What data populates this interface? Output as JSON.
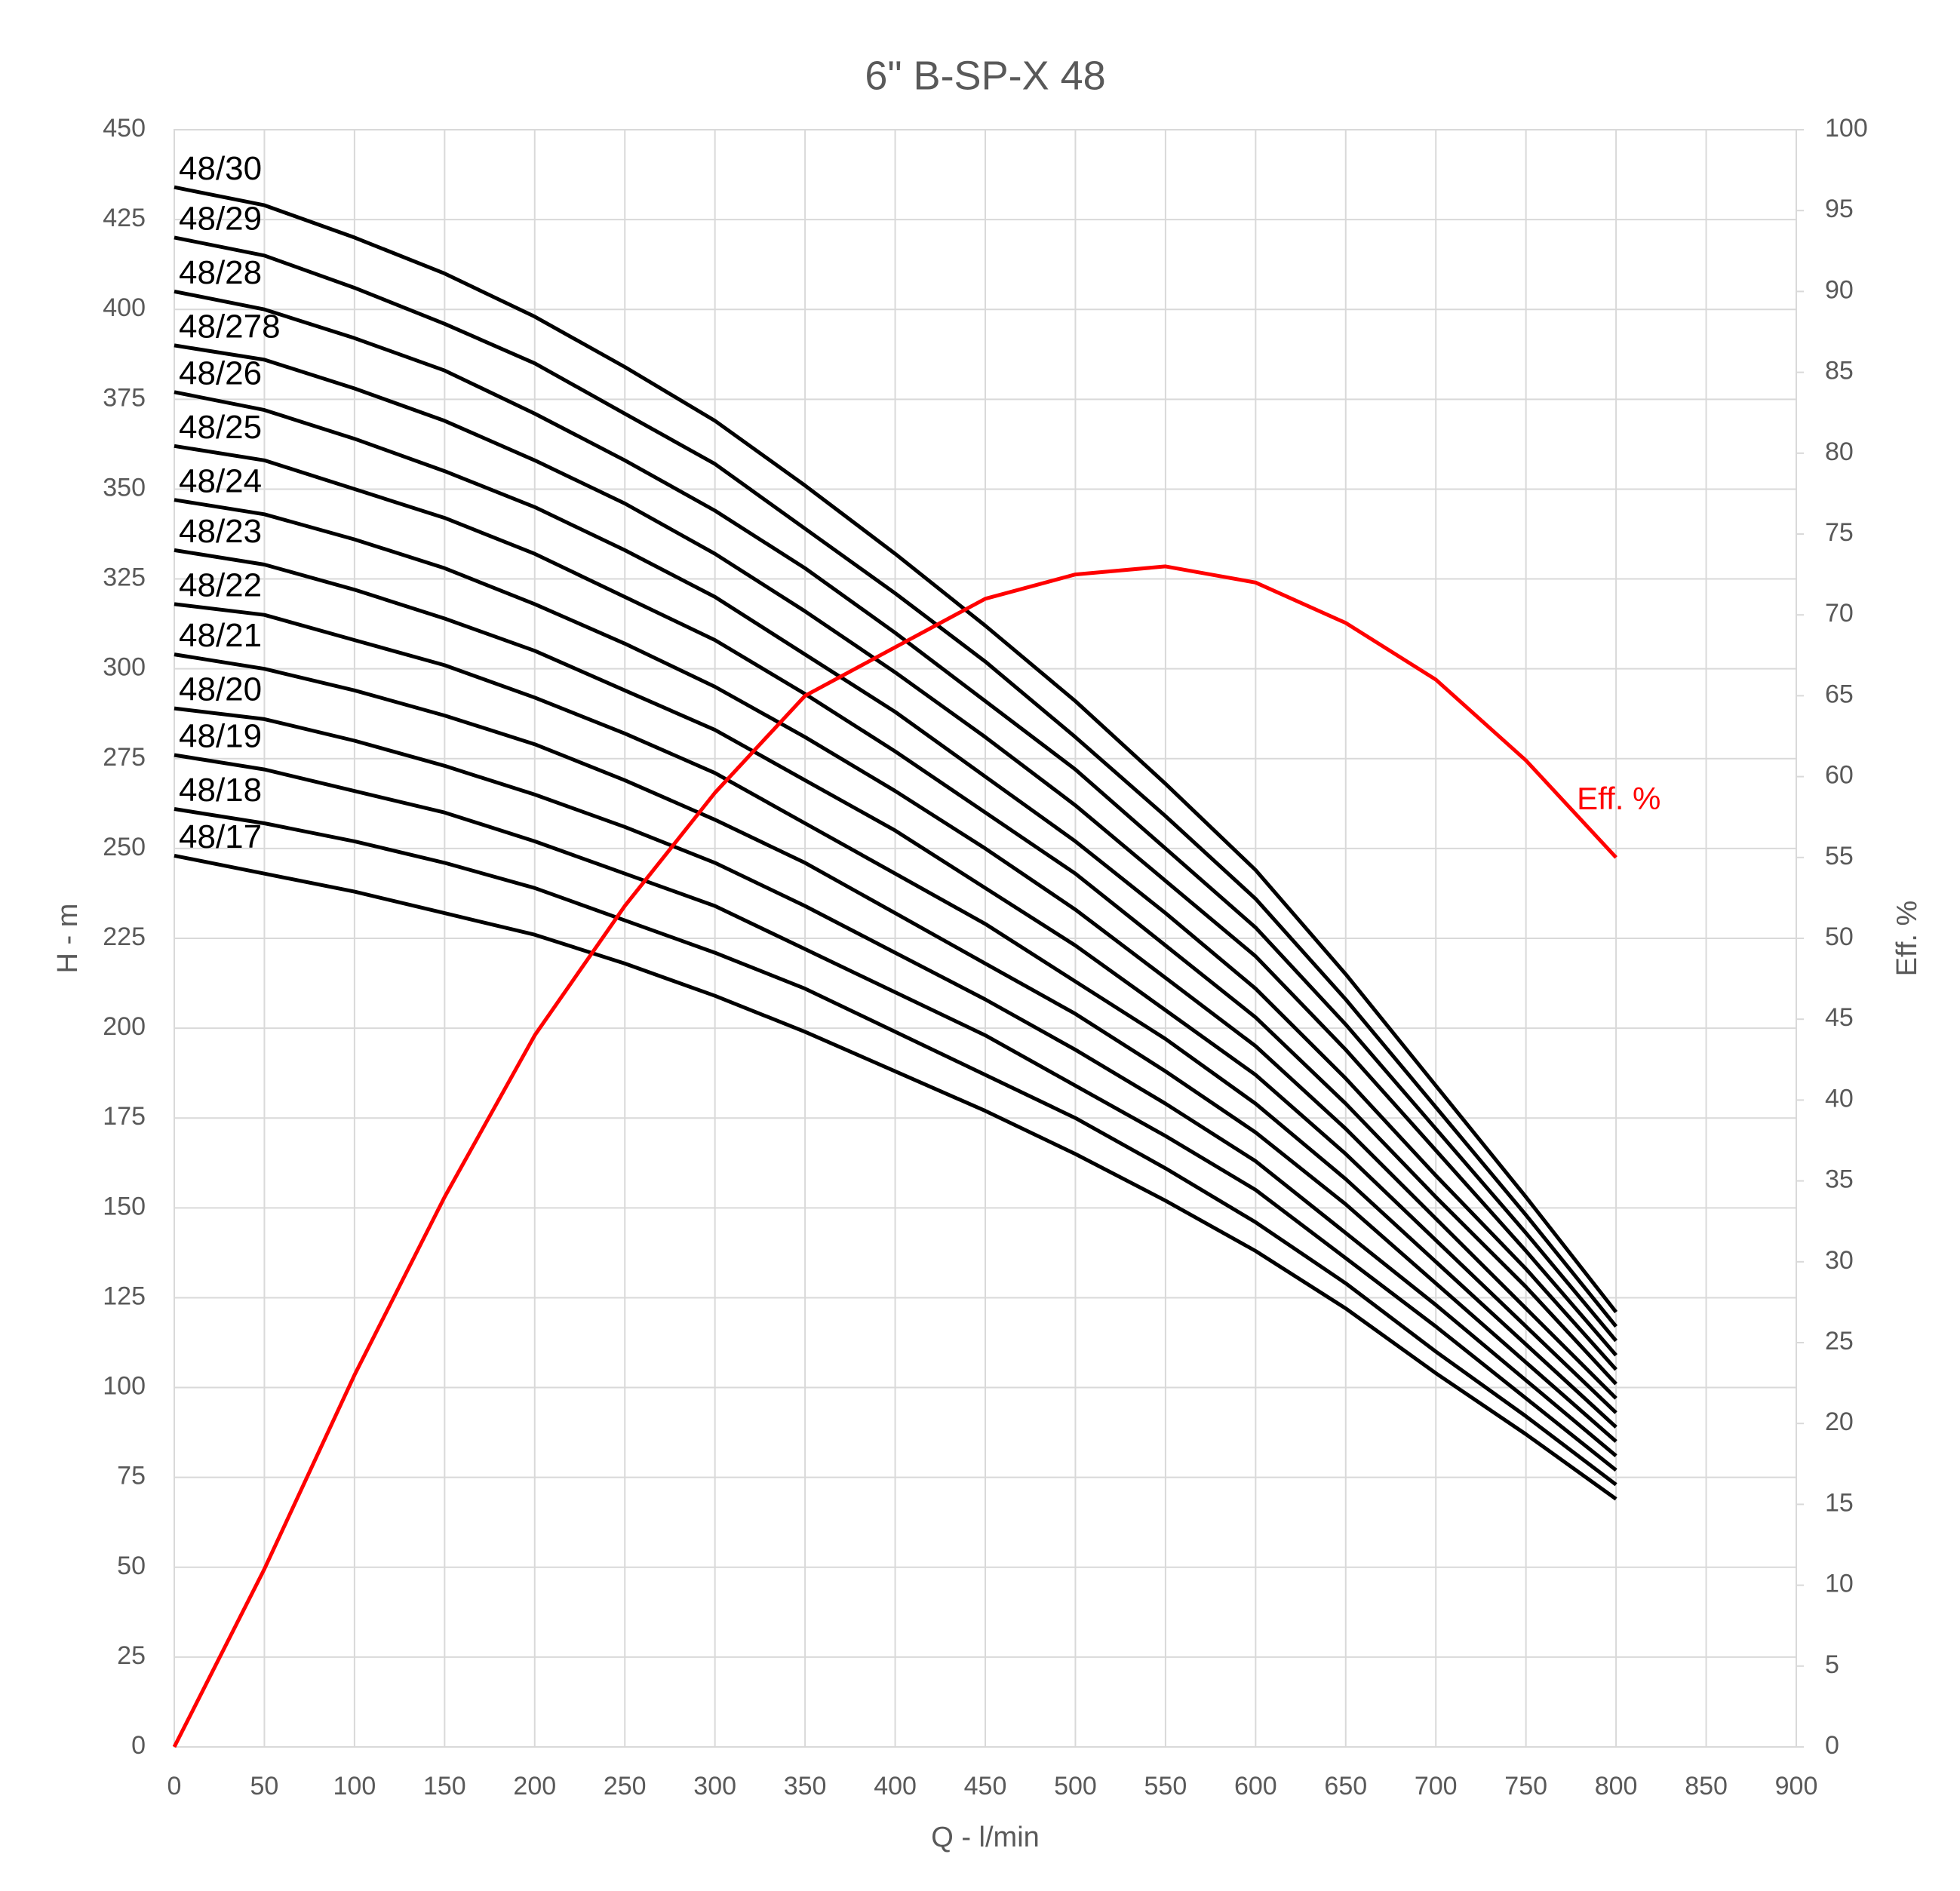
{
  "chart_data": {
    "type": "line",
    "title": "6\" B-SP-X 48",
    "x_label": "Q - l/min",
    "y_label": "H - m",
    "y2_label": "Eff. %",
    "x": [
      0,
      50,
      100,
      150,
      200,
      250,
      300,
      350,
      400,
      450,
      500,
      550,
      600,
      650,
      700,
      750,
      800
    ],
    "xlim": [
      0,
      900
    ],
    "xticks": [
      0,
      50,
      100,
      150,
      200,
      250,
      300,
      350,
      400,
      450,
      500,
      550,
      600,
      650,
      700,
      750,
      800,
      850,
      900
    ],
    "ylim": [
      0,
      450
    ],
    "yticks": [
      0,
      25,
      50,
      75,
      100,
      125,
      150,
      175,
      200,
      225,
      250,
      275,
      300,
      325,
      350,
      375,
      400,
      425,
      450
    ],
    "y2lim": [
      0,
      100
    ],
    "y2ticks": [
      0,
      5,
      10,
      15,
      20,
      25,
      30,
      35,
      40,
      45,
      50,
      55,
      60,
      65,
      70,
      75,
      80,
      85,
      90,
      95,
      100
    ],
    "grid": true,
    "series": [
      {
        "name": "48/30",
        "color": "#000000",
        "values": [
          434,
          429,
          420,
          410,
          398,
          384,
          369,
          351,
          332,
          312,
          291,
          268,
          244,
          215,
          184,
          153,
          121
        ]
      },
      {
        "name": "48/29",
        "color": "#000000",
        "values": [
          420,
          415,
          406,
          396,
          385,
          371,
          357,
          339,
          321,
          302,
          281,
          259,
          236,
          208,
          178,
          148,
          117
        ]
      },
      {
        "name": "48/28",
        "color": "#000000",
        "values": [
          405,
          400,
          392,
          383,
          371,
          358,
          344,
          328,
          310,
          291,
          272,
          250,
          228,
          201,
          172,
          143,
          113
        ]
      },
      {
        "name": "48/278",
        "color": "#000000",
        "values": [
          390,
          386,
          378,
          369,
          358,
          346,
          332,
          316,
          299,
          281,
          262,
          241,
          220,
          194,
          166,
          138,
          109
        ]
      },
      {
        "name": "48/26",
        "color": "#000000",
        "values": [
          377,
          372,
          364,
          355,
          345,
          333,
          320,
          304,
          288,
          270,
          252,
          232,
          211,
          186,
          159,
          133,
          105
        ]
      },
      {
        "name": "48/25",
        "color": "#000000",
        "values": [
          362,
          358,
          350,
          342,
          332,
          320,
          308,
          293,
          277,
          260,
          243,
          223,
          203,
          179,
          153,
          128,
          101
        ]
      },
      {
        "name": "48/24",
        "color": "#000000",
        "values": [
          347,
          343,
          336,
          328,
          318,
          307,
          295,
          281,
          266,
          250,
          233,
          214,
          195,
          172,
          147,
          122,
          97
        ]
      },
      {
        "name": "48/23",
        "color": "#000000",
        "values": [
          333,
          329,
          322,
          314,
          305,
          294,
          283,
          269,
          255,
          239,
          223,
          205,
          187,
          165,
          141,
          117,
          93
        ]
      },
      {
        "name": "48/22",
        "color": "#000000",
        "values": [
          318,
          315,
          308,
          301,
          292,
          282,
          271,
          257,
          243,
          229,
          213,
          197,
          179,
          158,
          135,
          112,
          89
        ]
      },
      {
        "name": "48/21",
        "color": "#000000",
        "values": [
          304,
          300,
          294,
          287,
          279,
          269,
          258,
          246,
          232,
          218,
          204,
          188,
          171,
          151,
          129,
          107,
          85
        ]
      },
      {
        "name": "48/20",
        "color": "#000000",
        "values": [
          289,
          286,
          280,
          273,
          265,
          256,
          246,
          234,
          221,
          208,
          194,
          179,
          163,
          143,
          123,
          102,
          81
        ]
      },
      {
        "name": "48/19",
        "color": "#000000",
        "values": [
          276,
          272,
          266,
          260,
          252,
          243,
          234,
          222,
          210,
          198,
          184,
          170,
          155,
          136,
          117,
          97,
          77
        ]
      },
      {
        "name": "48/18",
        "color": "#000000",
        "values": [
          261,
          257,
          252,
          246,
          239,
          230,
          221,
          211,
          199,
          187,
          175,
          161,
          146,
          129,
          110,
          92,
          73
        ]
      },
      {
        "name": "48/17",
        "color": "#000000",
        "values": [
          248,
          243,
          238,
          232,
          226,
          218,
          209,
          199,
          188,
          177,
          165,
          152,
          138,
          122,
          104,
          87,
          69
        ]
      },
      {
        "name": "Eff. %",
        "color": "#ff0000",
        "axis": "y2",
        "values": [
          0,
          11,
          23,
          34,
          44,
          52,
          59,
          65,
          68,
          71,
          72.5,
          73,
          72,
          69.5,
          66,
          61,
          55
        ]
      }
    ]
  }
}
